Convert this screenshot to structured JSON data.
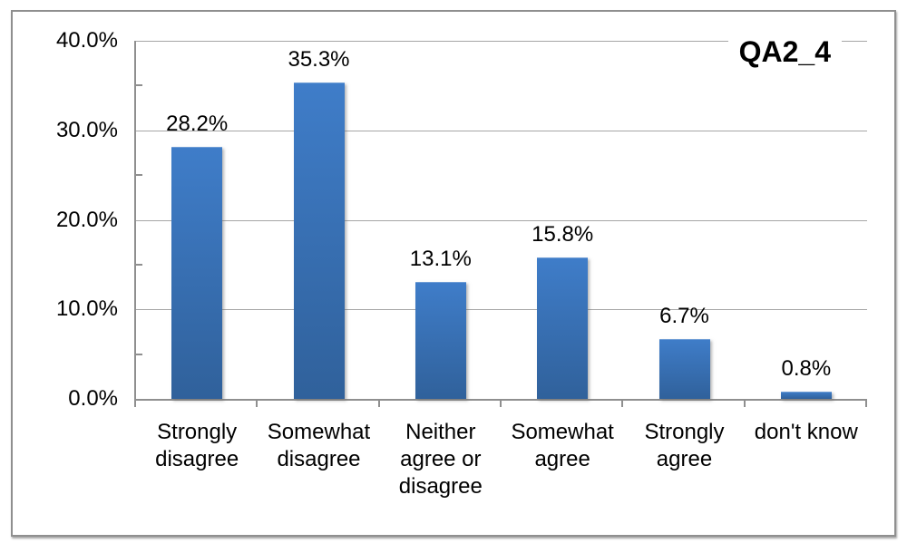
{
  "chart_data": {
    "type": "bar",
    "title": "QA2_4",
    "categories": [
      "Strongly disagree",
      "Somewhat disagree",
      "Neither agree or disagree",
      "Somewhat agree",
      "Strongly agree",
      "don't know"
    ],
    "values": [
      28.2,
      35.3,
      13.1,
      15.8,
      6.7,
      0.8
    ],
    "value_labels": [
      "28.2%",
      "35.3%",
      "13.1%",
      "15.8%",
      "6.7%",
      "0.8%"
    ],
    "xlabel": "",
    "ylabel": "",
    "y_axis": {
      "min": 0,
      "max": 40,
      "major_step": 10,
      "minor_step": 5,
      "tick_labels_top_to_bottom": [
        "40.0%",
        "30.0%",
        "20.0%",
        "10.0%",
        "0.0%"
      ]
    },
    "grid": "horizontal-major-on",
    "legend": "none",
    "style": {
      "bar_gradient_top": "#3f7dc9",
      "bar_gradient_bottom": "#30619b",
      "gridline_color": "#a6a6a6",
      "axis_color": "#8f8f8f",
      "frame_border_color": "#8f8f8f",
      "label_color": "#000000",
      "background": "#ffffff"
    }
  }
}
